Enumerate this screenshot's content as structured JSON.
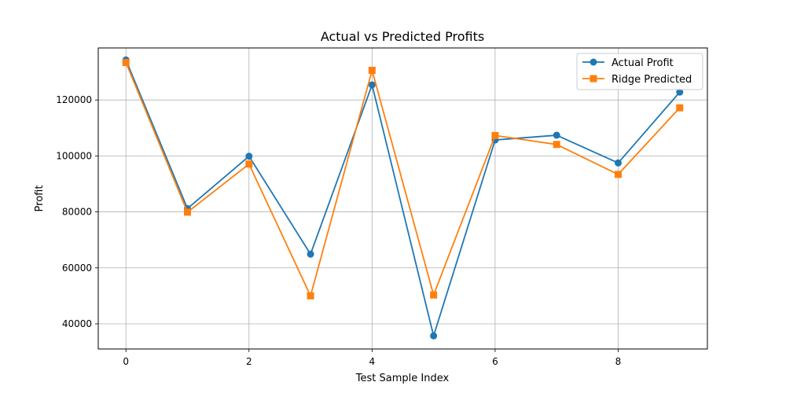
{
  "chart_data": {
    "type": "line",
    "title": "Actual vs Predicted Profits",
    "xlabel": "Test Sample Index",
    "ylabel": "Profit",
    "x": [
      0,
      1,
      2,
      3,
      4,
      5,
      6,
      7,
      8,
      9
    ],
    "xticks": [
      0,
      2,
      4,
      6,
      8
    ],
    "xtick_labels": [
      "0",
      "2",
      "4",
      "6",
      "8"
    ],
    "yticks": [
      40000,
      60000,
      80000,
      100000,
      120000
    ],
    "ytick_labels": [
      "40000",
      "60000",
      "80000",
      "100000",
      "120000"
    ],
    "xlim": [
      -0.45,
      9.45
    ],
    "ylim": [
      31000,
      138600
    ],
    "grid": true,
    "legend_position": "top-right",
    "series": [
      {
        "name": "Actual Profit",
        "color": "#1f77b4",
        "marker": "circle",
        "values": [
          134300,
          81200,
          99900,
          64900,
          125400,
          35700,
          105700,
          107400,
          97500,
          122800
        ]
      },
      {
        "name": "Ridge Predicted",
        "color": "#ff7f0e",
        "marker": "square",
        "values": [
          133400,
          79900,
          97100,
          50000,
          130600,
          50300,
          107300,
          104100,
          93400,
          117200
        ]
      }
    ]
  }
}
